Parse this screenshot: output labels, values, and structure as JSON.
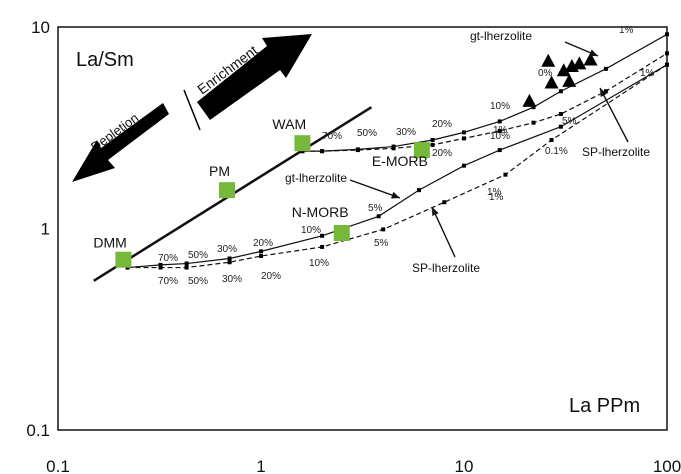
{
  "chart_data": {
    "type": "scatter",
    "title": "",
    "xlabel": "La PPm",
    "ylabel": "La/Sm",
    "xscale": "log",
    "yscale": "log",
    "xlim": [
      0.1,
      100
    ],
    "ylim": [
      0.1,
      10
    ],
    "xticks": [
      "0.1",
      "1",
      "10",
      "100"
    ],
    "yticks": [
      "0.1",
      "1",
      "10"
    ],
    "grid": false,
    "legend": "none",
    "colors": {
      "reservoir": "#77b73a",
      "line": "#111111",
      "triangle": "#000000",
      "point": "#000000"
    },
    "arrows": {
      "enrichment": "Enrichment",
      "depletion": "Depletion"
    },
    "reservoirs": [
      {
        "label": "DMM",
        "x": 0.21,
        "y": 0.7
      },
      {
        "label": "PM",
        "x": 0.68,
        "y": 1.55
      },
      {
        "label": "WAM",
        "x": 1.6,
        "y": 2.65
      },
      {
        "label": "E-MORB",
        "x": 6.2,
        "y": 2.45
      },
      {
        "label": "N-MORB",
        "x": 2.5,
        "y": 0.95
      }
    ],
    "reference_line": {
      "name": "",
      "x": [
        0.15,
        3.5
      ],
      "y": [
        0.55,
        4.0
      ]
    },
    "series": [
      {
        "name": "SP-lherzolite",
        "x": [
          0.22,
          0.32,
          0.43,
          0.7,
          1.0,
          2.0,
          4.0,
          8.0,
          16.0,
          27.0,
          100.0
        ],
        "y": [
          0.64,
          0.64,
          0.64,
          0.68,
          0.73,
          0.81,
          0.99,
          1.35,
          1.85,
          2.75,
          6.5
        ]
      },
      {
        "name": "gt-lherzolite",
        "x": [
          0.22,
          0.32,
          0.43,
          0.7,
          1.0,
          2.0,
          3.8,
          6.0,
          10.0,
          15.0,
          30.0,
          100.0
        ],
        "y": [
          0.64,
          0.66,
          0.67,
          0.71,
          0.77,
          0.92,
          1.15,
          1.55,
          2.05,
          2.45,
          3.2,
          6.5
        ]
      },
      {
        "name": "SP-lherzolite",
        "x": [
          1.6,
          2.0,
          3.0,
          4.5,
          7.0,
          10.0,
          15.0,
          22.0,
          30.0,
          50.0,
          100.0
        ],
        "y": [
          2.42,
          2.42,
          2.45,
          2.5,
          2.6,
          2.8,
          3.05,
          3.35,
          3.7,
          4.8,
          7.4
        ]
      },
      {
        "name": "gt-lherzolite",
        "x": [
          1.6,
          2.0,
          3.0,
          4.5,
          7.0,
          10.0,
          15.0,
          22.0,
          30.0,
          50.0,
          100.0
        ],
        "y": [
          2.42,
          2.42,
          2.47,
          2.55,
          2.75,
          3.0,
          3.4,
          4.0,
          4.8,
          6.2,
          9.2
        ]
      }
    ],
    "triangles": [
      {
        "x": 21,
        "y": 4.3
      },
      {
        "x": 26,
        "y": 6.8
      },
      {
        "x": 27,
        "y": 5.3
      },
      {
        "x": 31,
        "y": 6.1
      },
      {
        "x": 34,
        "y": 6.4
      },
      {
        "x": 37,
        "y": 6.6
      },
      {
        "x": 42,
        "y": 6.9
      },
      {
        "x": 33,
        "y": 5.4
      }
    ],
    "annotations": {
      "pct_labels": [
        "70%",
        "50%",
        "30%",
        "20%",
        "10%",
        "5%",
        "1%",
        "70%",
        "50%",
        "30%",
        "20%",
        "10%",
        "5%",
        "1%",
        "0.1%",
        "70%",
        "50%",
        "30%",
        "20%",
        "10%",
        "5%",
        "1%",
        "0%",
        "1%",
        "20%",
        "10%",
        "1%"
      ],
      "curve_labels": [
        "gt-lherzolite",
        "SP-lherzolite",
        "gt-lherzolite",
        "SP-lherzolite"
      ]
    }
  }
}
